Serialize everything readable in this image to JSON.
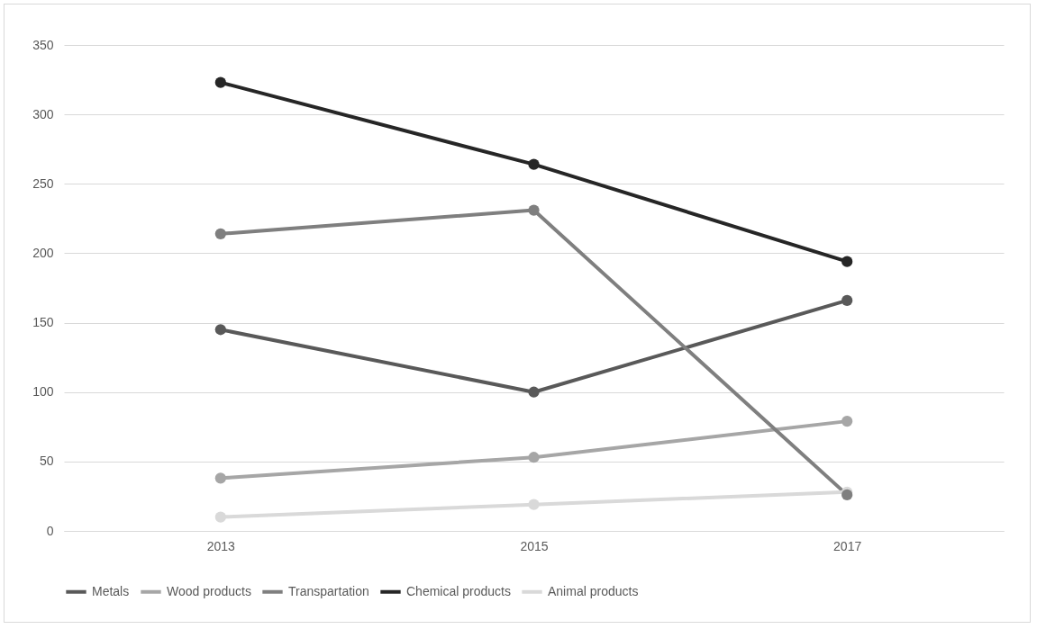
{
  "chart_data": {
    "type": "line",
    "categories": [
      "2013",
      "2015",
      "2017"
    ],
    "series": [
      {
        "name": "Metals",
        "color": "#595959",
        "values": [
          145,
          100,
          166
        ]
      },
      {
        "name": "Wood products",
        "color": "#a6a6a6",
        "values": [
          38,
          53,
          79
        ]
      },
      {
        "name": "Transpartation",
        "color": "#7f7f7f",
        "values": [
          214,
          231,
          26
        ]
      },
      {
        "name": "Chemical products",
        "color": "#262626",
        "values": [
          323,
          264,
          194
        ]
      },
      {
        "name": "Animal products",
        "color": "#d9d9d9",
        "values": [
          10,
          19,
          28
        ]
      }
    ],
    "ylim": [
      0,
      350
    ],
    "yticks": [
      0,
      50,
      100,
      150,
      200,
      250,
      300,
      350
    ],
    "grid": "y",
    "legend": "bottom",
    "marker": "circle",
    "line_style": "solid"
  }
}
